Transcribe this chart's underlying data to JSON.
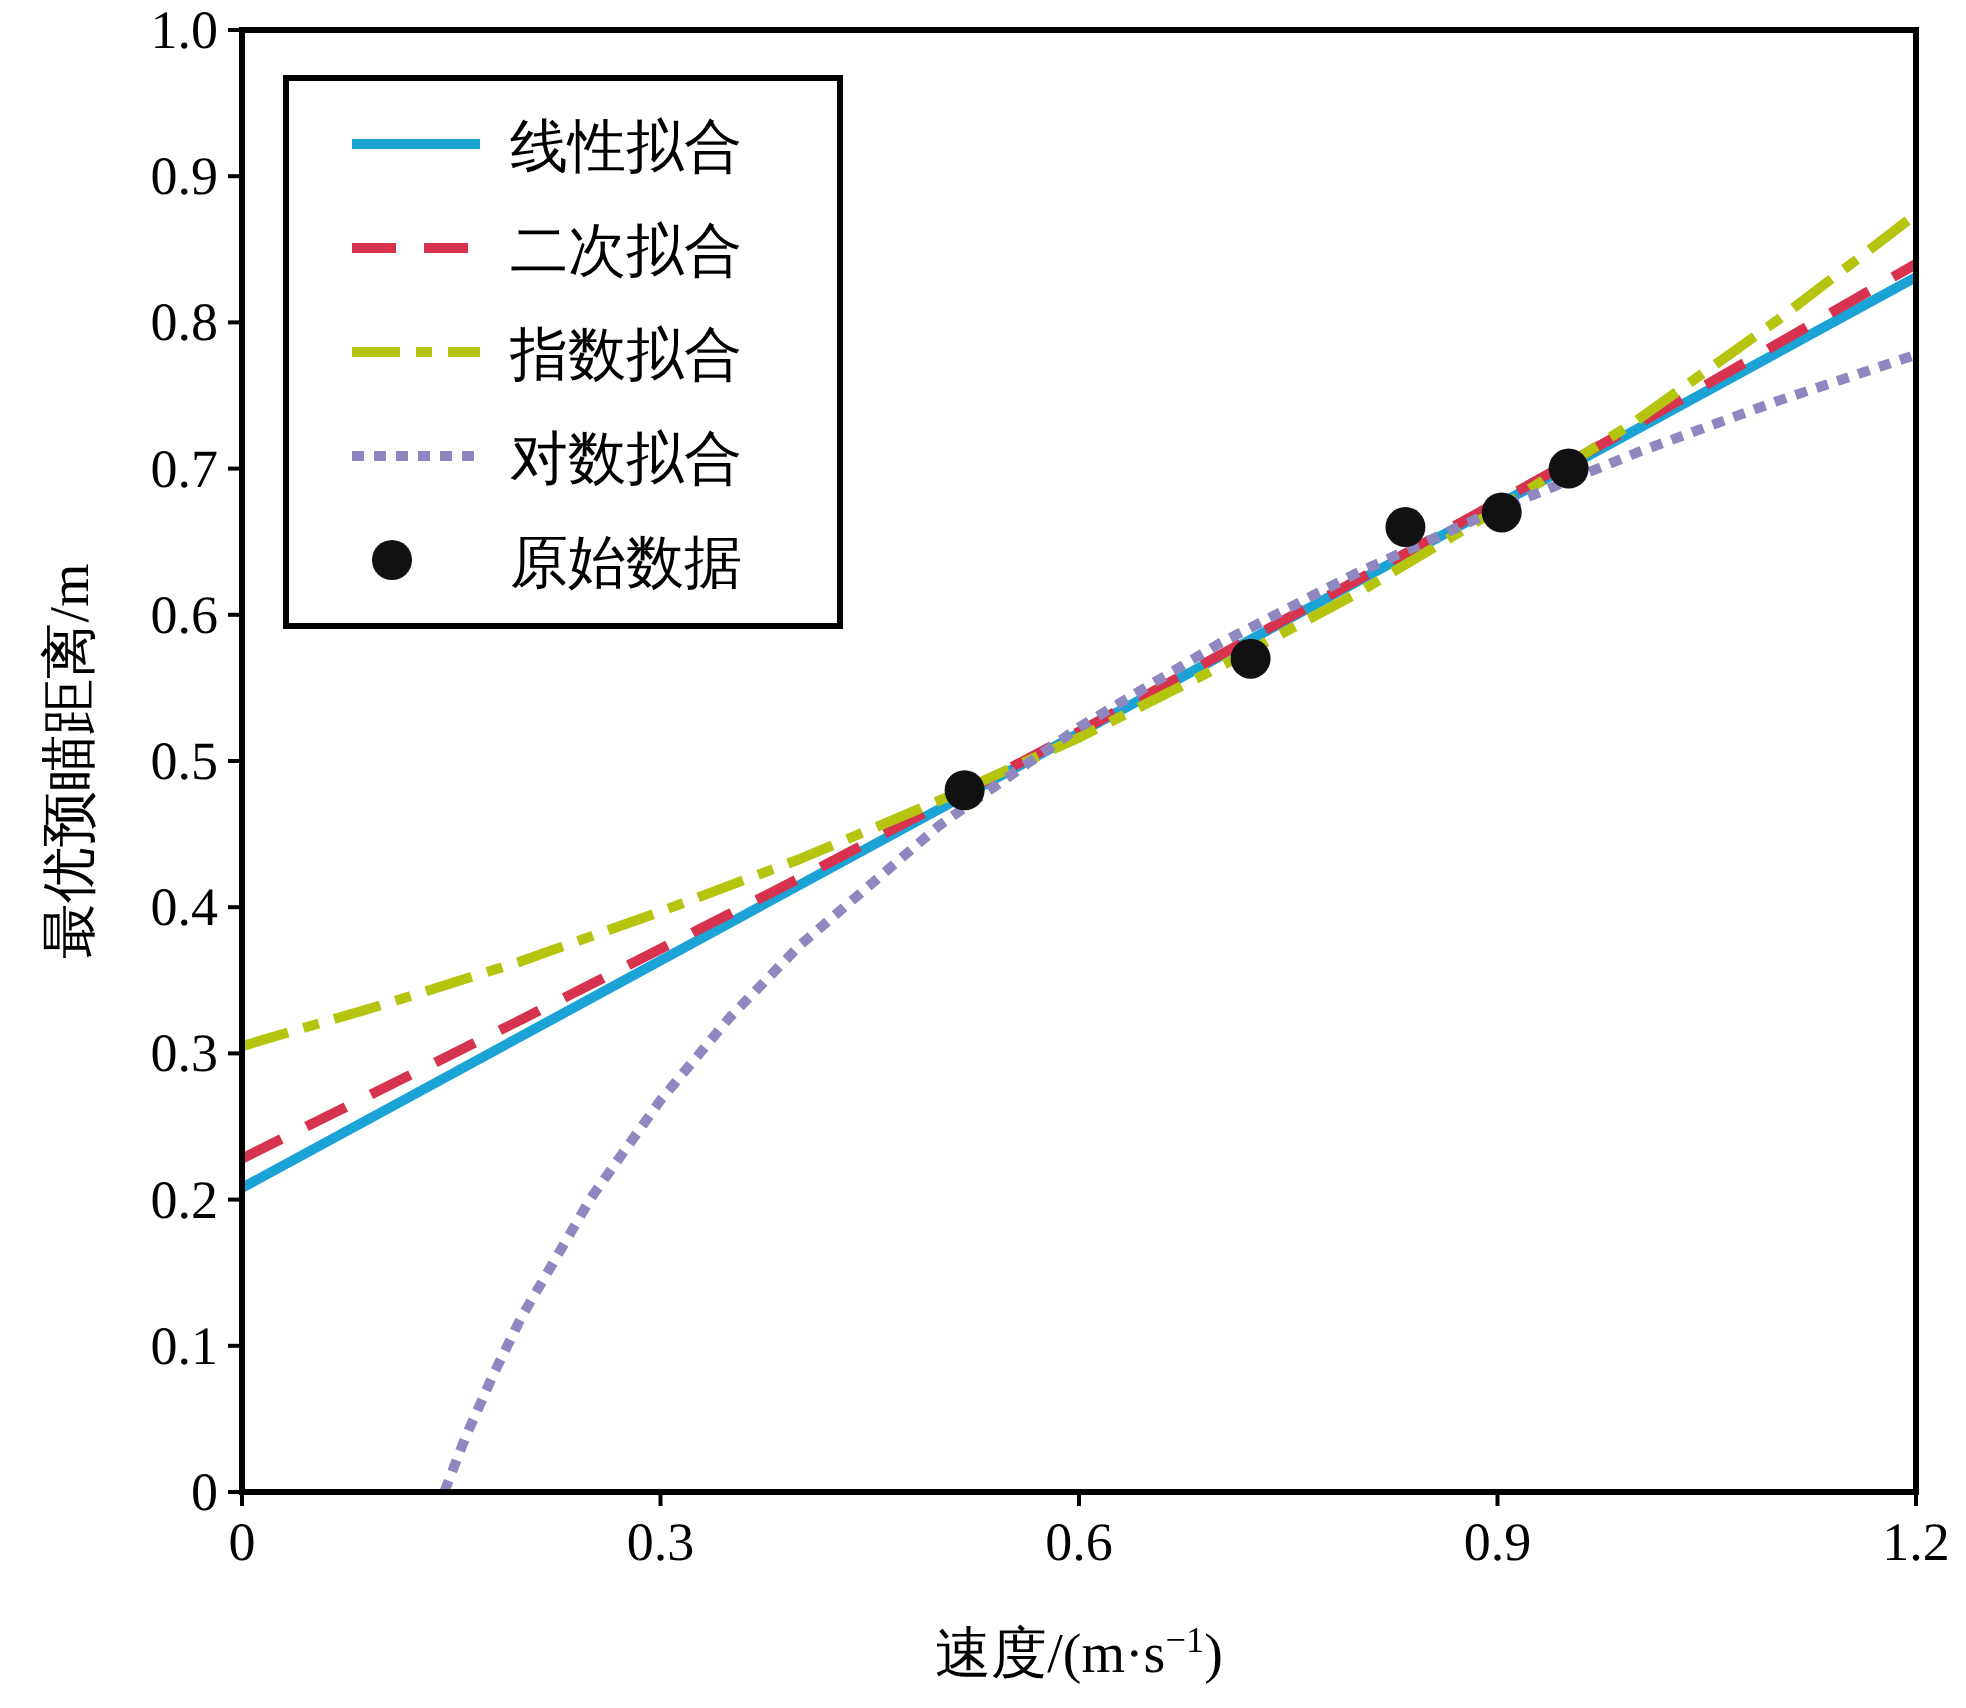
{
  "chart_data": {
    "type": "line",
    "xlabel": "速度/(m·s$^{−1}$)",
    "ylabel": "最优预瞄距离/m",
    "xlim": [
      0,
      1.2
    ],
    "ylim": [
      0,
      1
    ],
    "xticks": [
      0,
      0.3,
      0.6,
      0.9,
      1.2
    ],
    "yticks": [
      0,
      0.1,
      0.2,
      0.3,
      0.4,
      0.5,
      0.6,
      0.7,
      0.8,
      0.9,
      {
        "value": 1,
        "label": "1.0"
      }
    ],
    "grid": false,
    "legend": "top left",
    "series": [
      {
        "name": "线性拟合",
        "line_style": "solid",
        "color": "#1ba3d6",
        "x": [
          0,
          0.6,
          1.2
        ],
        "values": [
          0.208,
          0.519,
          0.831
        ]
      },
      {
        "name": "二次拟合",
        "line_style": "dashed",
        "color": "#d7334f",
        "x": [
          0,
          0.2,
          0.4,
          0.6,
          0.8,
          1.0,
          1.2
        ],
        "values": [
          0.228,
          0.323,
          0.42,
          0.52,
          0.624,
          0.73,
          0.84
        ]
      },
      {
        "name": "指数拟合",
        "line_style": "dashdot",
        "color": "#b5c40f",
        "x": [
          0,
          0.1,
          0.2,
          0.3,
          0.4,
          0.5,
          0.6,
          0.7,
          0.8,
          0.9,
          1.0,
          1.1,
          1.2
        ],
        "values": [
          0.305,
          0.333,
          0.363,
          0.397,
          0.433,
          0.473,
          0.516,
          0.564,
          0.615,
          0.672,
          0.733,
          0.801,
          0.874
        ]
      },
      {
        "name": "对数拟合",
        "line_style": "dotted",
        "color": "#8f87c0",
        "x": [
          0.145,
          0.16,
          0.18,
          0.2,
          0.25,
          0.3,
          0.35,
          0.4,
          0.5,
          0.6,
          0.7,
          0.8,
          0.9,
          1.0,
          1.1,
          1.2
        ],
        "values": [
          0.0,
          0.037,
          0.08,
          0.119,
          0.201,
          0.268,
          0.325,
          0.374,
          0.456,
          0.523,
          0.58,
          0.629,
          0.672,
          0.711,
          0.746,
          0.778
        ]
      },
      {
        "name": "原始数据",
        "type": "scatter",
        "marker": "circle",
        "color": "#111111",
        "x": [
          0.518,
          0.723,
          0.834,
          0.903,
          0.951
        ],
        "values": [
          0.48,
          0.57,
          0.66,
          0.67,
          0.7
        ]
      }
    ]
  }
}
